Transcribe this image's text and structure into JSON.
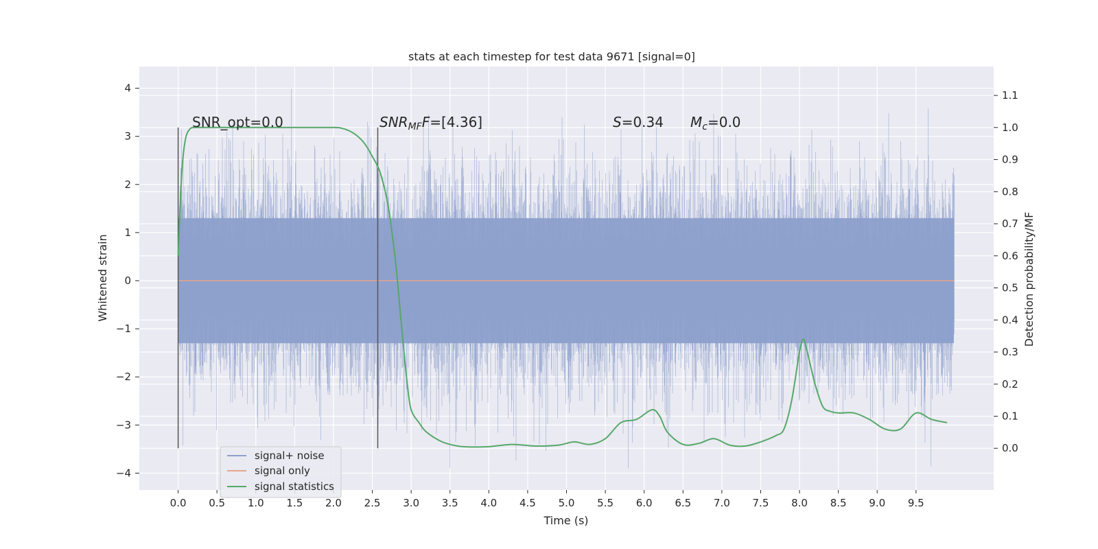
{
  "chart_data": {
    "type": "line",
    "title": "stats at each timestep for test data 9671 [signal=0]",
    "xlabel": "Time (s)",
    "ylabel": "Whitened strain",
    "y2label": "Detection probability/MF",
    "xlim": [
      -0.5,
      10.5
    ],
    "ylim": [
      -4.35,
      4.45
    ],
    "y2lim": [
      -0.13,
      1.19
    ],
    "x_ticks": [
      "0.0",
      "0.5",
      "1.0",
      "1.5",
      "2.0",
      "2.5",
      "3.0",
      "3.5",
      "4.0",
      "4.5",
      "5.0",
      "5.5",
      "6.0",
      "6.5",
      "7.0",
      "7.5",
      "8.0",
      "8.5",
      "9.0",
      "9.5"
    ],
    "y_ticks": [
      "4",
      "3",
      "2",
      "1",
      "0",
      "−1",
      "−2",
      "−3",
      "−4"
    ],
    "y2_ticks": [
      "1.1",
      "1.0",
      "0.9",
      "0.8",
      "0.7",
      "0.6",
      "0.5",
      "0.4",
      "0.3",
      "0.2",
      "0.1",
      "0.0"
    ],
    "legend": {
      "position": "lower-left",
      "entries": [
        "signal+ noise",
        "signal only",
        "signal statistics"
      ]
    },
    "annotations": {
      "snr_opt": "SNR_opt=0.0",
      "snr_mf": "=[4.36]",
      "s_stat": "=0.34",
      "mc": "=0.0"
    },
    "colors": {
      "noise": "#8da0cb",
      "signal": "#e5a68c",
      "stats": "#55a868",
      "background": "#eaeaf2",
      "grid": "#ffffff",
      "vline": "#555555"
    },
    "series": [
      {
        "name": "signal+ noise",
        "x_range": [
          0.0,
          9.99
        ],
        "envelope_1sigma": [
          -1.0,
          1.0
        ],
        "extreme_range": [
          -3.9,
          4.05
        ]
      },
      {
        "name": "signal only",
        "x": [
          0.0,
          9.99
        ],
        "y": [
          0.0,
          0.0
        ]
      },
      {
        "name": "signal statistics",
        "axis": "right",
        "x": [
          0.0,
          0.03,
          0.06,
          0.1,
          0.15,
          0.2,
          0.3,
          0.5,
          1.0,
          1.5,
          2.0,
          2.1,
          2.2,
          2.3,
          2.4,
          2.5,
          2.6,
          2.7,
          2.8,
          2.85,
          2.9,
          2.95,
          3.0,
          3.1,
          3.2,
          3.4,
          3.6,
          3.8,
          4.0,
          4.3,
          4.6,
          4.9,
          5.1,
          5.3,
          5.5,
          5.7,
          5.9,
          6.1,
          6.2,
          6.3,
          6.5,
          6.7,
          6.9,
          7.1,
          7.3,
          7.5,
          7.7,
          7.8,
          7.9,
          8.0,
          8.05,
          8.1,
          8.2,
          8.3,
          8.4,
          8.5,
          8.7,
          8.9,
          9.1,
          9.3,
          9.5,
          9.7,
          9.9
        ],
        "y": [
          0.6,
          0.78,
          0.9,
          0.97,
          0.995,
          1.0,
          1.0,
          1.0,
          1.0,
          1.0,
          1.0,
          0.998,
          0.99,
          0.975,
          0.95,
          0.91,
          0.86,
          0.76,
          0.58,
          0.45,
          0.32,
          0.2,
          0.12,
          0.08,
          0.05,
          0.02,
          0.007,
          0.004,
          0.005,
          0.012,
          0.007,
          0.01,
          0.02,
          0.012,
          0.03,
          0.08,
          0.09,
          0.12,
          0.1,
          0.05,
          0.012,
          0.015,
          0.03,
          0.01,
          0.007,
          0.02,
          0.04,
          0.06,
          0.15,
          0.3,
          0.34,
          0.3,
          0.2,
          0.13,
          0.115,
          0.11,
          0.11,
          0.09,
          0.06,
          0.06,
          0.11,
          0.09,
          0.08
        ]
      }
    ]
  }
}
